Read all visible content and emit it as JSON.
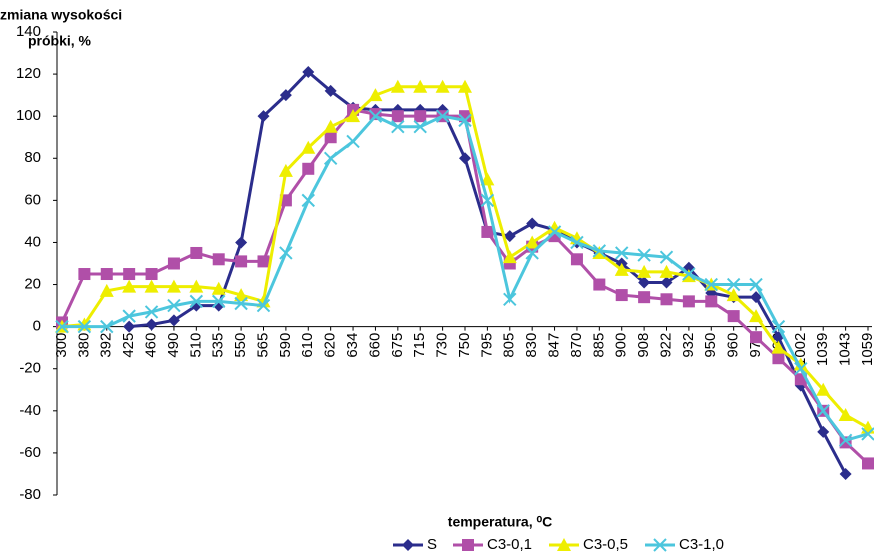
{
  "chart_data": {
    "type": "line",
    "ylabel": [
      "zmiana wysokości",
      "próbki, %"
    ],
    "xlabel": "temperatura, ⁰C",
    "categories": [
      "300",
      "380",
      "392",
      "425",
      "460",
      "490",
      "510",
      "535",
      "550",
      "565",
      "590",
      "610",
      "620",
      "634",
      "660",
      "675",
      "715",
      "730",
      "750",
      "795",
      "805",
      "830",
      "847",
      "870",
      "885",
      "900",
      "908",
      "922",
      "932",
      "950",
      "960",
      "970",
      "990",
      "1002",
      "1039",
      "1043",
      "1059"
    ],
    "ylim": [
      -80,
      140
    ],
    "yticks": [
      -80,
      -60,
      -40,
      -20,
      0,
      20,
      40,
      60,
      80,
      100,
      120,
      140
    ],
    "grid": false,
    "legend": "bottom",
    "series": [
      {
        "name": "S",
        "color": "#2b2d8c",
        "marker": "diamond",
        "values": [
          null,
          null,
          null,
          0,
          1,
          3,
          10,
          10,
          40,
          100,
          110,
          121,
          112,
          104,
          103,
          103,
          103,
          103,
          80,
          45,
          43,
          49,
          46,
          40,
          35,
          30,
          21,
          21,
          28,
          16,
          14,
          14,
          -5,
          -28,
          -50,
          -70,
          null
        ]
      },
      {
        "name": "C3-0,1",
        "color": "#b04fa8",
        "marker": "square",
        "values": [
          2,
          25,
          25,
          25,
          25,
          30,
          35,
          32,
          31,
          31,
          60,
          75,
          90,
          103,
          101,
          100,
          100,
          100,
          100,
          45,
          30,
          38,
          43,
          32,
          20,
          15,
          14,
          13,
          12,
          12,
          5,
          -5,
          -15,
          -25,
          -40,
          -55,
          -65
        ]
      },
      {
        "name": "C3-0,5",
        "color": "#eeee00",
        "marker": "triangle",
        "values": [
          0,
          1,
          17,
          19,
          19,
          19,
          19,
          18,
          15,
          12,
          74,
          85,
          95,
          100,
          110,
          114,
          114,
          114,
          114,
          70,
          33,
          40,
          47,
          42,
          35,
          27,
          26,
          26,
          24,
          20,
          15,
          5,
          -10,
          -18,
          -30,
          -42,
          -48
        ]
      },
      {
        "name": "C3-1,0",
        "color": "#4cc6dd",
        "marker": "x",
        "values": [
          0,
          0,
          0,
          5,
          7,
          10,
          12,
          12,
          11,
          10,
          35,
          60,
          80,
          88,
          100,
          95,
          95,
          100,
          98,
          60,
          13,
          35,
          45,
          40,
          36,
          35,
          34,
          33,
          25,
          20,
          20,
          20,
          0,
          -20,
          -40,
          -54,
          -51
        ]
      }
    ]
  }
}
